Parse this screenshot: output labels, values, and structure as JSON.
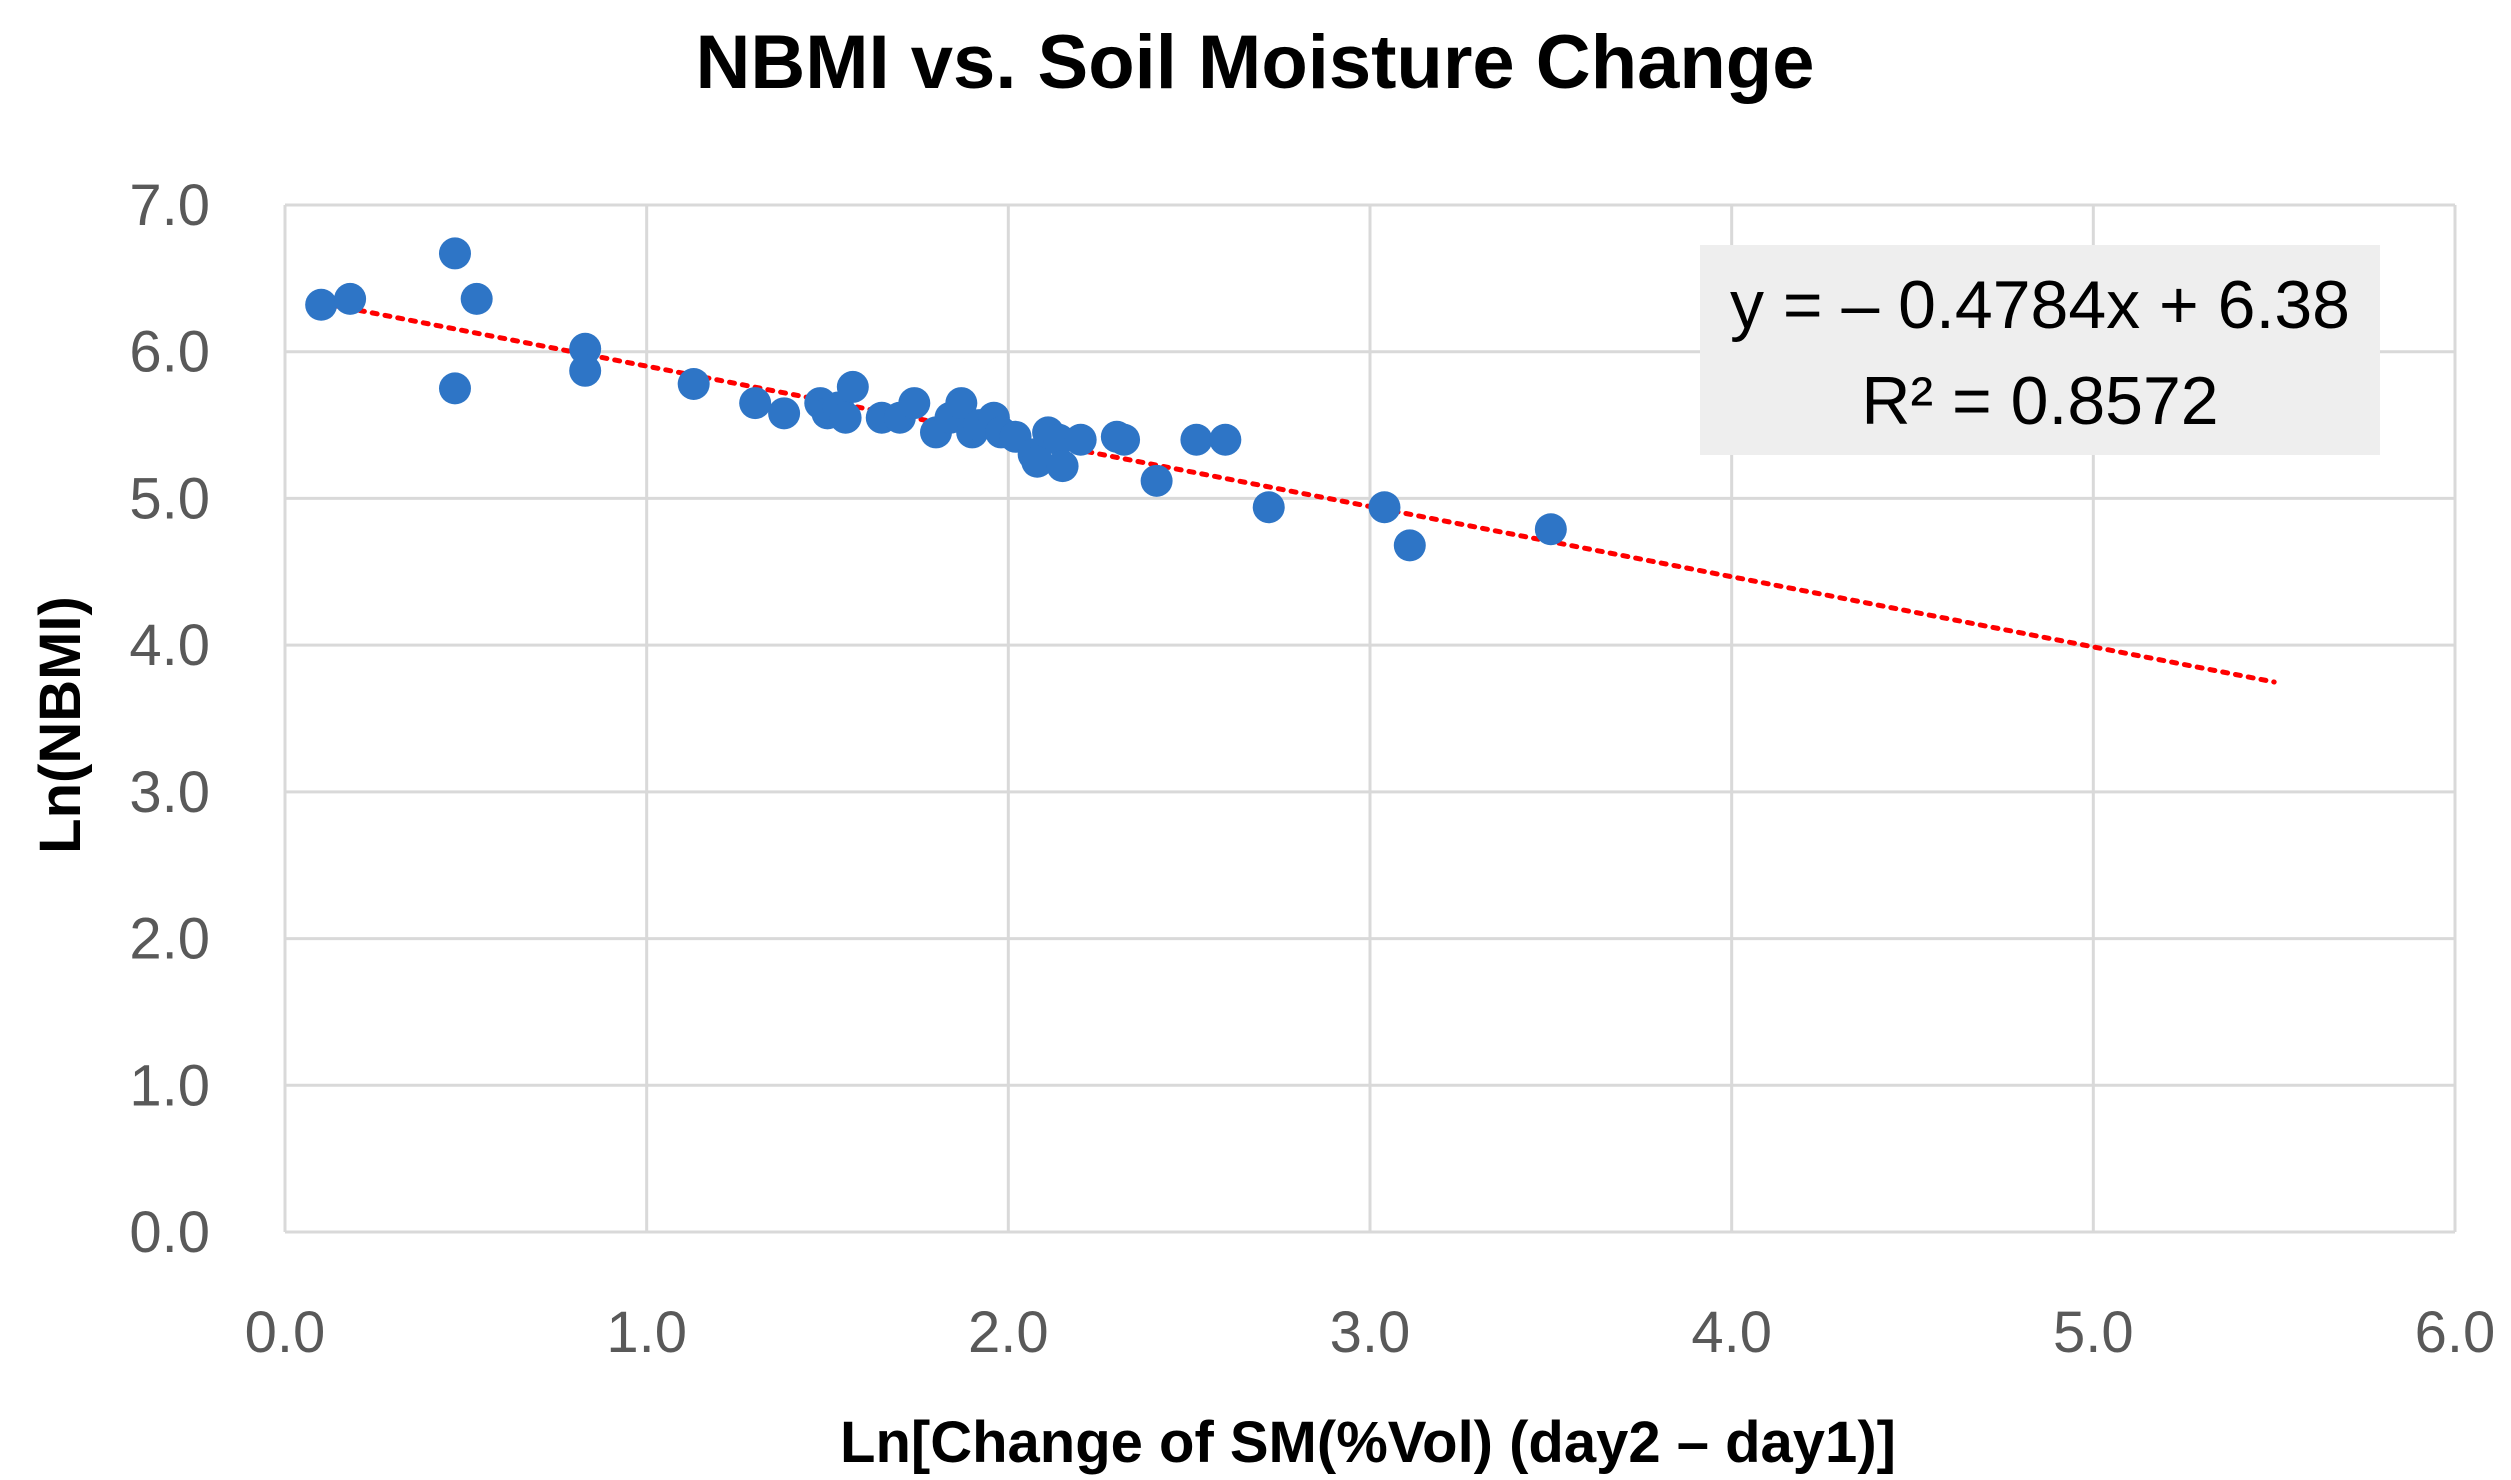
{
  "chart_data": {
    "type": "scatter",
    "title": "NBMI vs. Soil Moisture Change",
    "xlabel": "Ln[Change of SM(%Vol) (day2 – day1)]",
    "ylabel": "Ln(NBMI)",
    "xlim": [
      0,
      6
    ],
    "ylim": [
      0,
      7
    ],
    "x_ticks": [
      "0.0",
      "1.0",
      "2.0",
      "3.0",
      "4.0",
      "5.0",
      "6.0"
    ],
    "y_ticks": [
      "0.0",
      "1.0",
      "2.0",
      "3.0",
      "4.0",
      "5.0",
      "6.0",
      "7.0"
    ],
    "grid": true,
    "colors": {
      "points": "#2E75C6",
      "trendline": "#FF0000",
      "grid": "#D9D9D9",
      "eq_box": "#EEEEEE"
    },
    "series": [
      {
        "name": "NBMI",
        "points": [
          [
            0.1,
            6.32
          ],
          [
            0.18,
            6.36
          ],
          [
            0.47,
            6.67
          ],
          [
            0.47,
            5.75
          ],
          [
            0.53,
            6.36
          ],
          [
            0.83,
            6.02
          ],
          [
            0.83,
            5.87
          ],
          [
            1.13,
            5.78
          ],
          [
            1.3,
            5.65
          ],
          [
            1.38,
            5.58
          ],
          [
            1.48,
            5.65
          ],
          [
            1.5,
            5.58
          ],
          [
            1.53,
            5.62
          ],
          [
            1.55,
            5.55
          ],
          [
            1.57,
            5.76
          ],
          [
            1.65,
            5.55
          ],
          [
            1.7,
            5.55
          ],
          [
            1.74,
            5.65
          ],
          [
            1.8,
            5.45
          ],
          [
            1.84,
            5.55
          ],
          [
            1.87,
            5.65
          ],
          [
            1.9,
            5.45
          ],
          [
            1.92,
            5.5
          ],
          [
            1.96,
            5.55
          ],
          [
            1.98,
            5.45
          ],
          [
            2.02,
            5.42
          ],
          [
            2.07,
            5.3
          ],
          [
            2.08,
            5.25
          ],
          [
            2.11,
            5.45
          ],
          [
            2.14,
            5.4
          ],
          [
            2.15,
            5.22
          ],
          [
            2.2,
            5.4
          ],
          [
            2.3,
            5.42
          ],
          [
            2.32,
            5.4
          ],
          [
            2.41,
            5.12
          ],
          [
            2.52,
            5.4
          ],
          [
            2.6,
            5.4
          ],
          [
            2.72,
            4.94
          ],
          [
            3.04,
            4.94
          ],
          [
            3.11,
            4.68
          ],
          [
            3.5,
            4.79
          ]
        ]
      }
    ],
    "trendline": {
      "slope": -0.4784,
      "intercept": 6.38,
      "x_range": [
        0.1,
        5.5
      ],
      "equation": "y = – 0.4784x + 6.38",
      "r2": "R² = 0.8572"
    }
  }
}
